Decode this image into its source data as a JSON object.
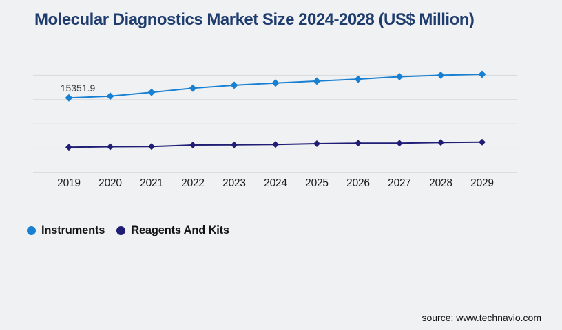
{
  "source": "source: www.technavio.com",
  "colors": {
    "background": "#f0f1f3",
    "title": "#1e3c6e",
    "gridline": "#d7d8da",
    "axis_line": "#c6c7c9",
    "axis_label": "#1a1a1a",
    "data_label": "#3a3a3a",
    "instruments": "#1880d2",
    "reagents_and_kits": "#201d75"
  },
  "legend": {
    "items": [
      {
        "label": "Instruments",
        "color": "#1880d2"
      },
      {
        "label": "Reagents And Kits",
        "color": "#201d75"
      }
    ]
  },
  "chart_data": {
    "type": "line",
    "title": "Molecular Diagnostics Market Size 2024-2028 (US$ Million)",
    "categories": [
      "2019",
      "2020",
      "2021",
      "2022",
      "2023",
      "2024",
      "2025",
      "2026",
      "2027",
      "2028",
      "2029"
    ],
    "series": [
      {
        "name": "Instruments",
        "color": "#1880d2",
        "marker": "diamond",
        "values": [
          15351.9,
          15700,
          16500,
          17350,
          17950,
          18400,
          18800,
          19200,
          19700,
          20000,
          20200
        ]
      },
      {
        "name": "Reagents And Kits",
        "color": "#201d75",
        "marker": "diamond",
        "values": [
          5180,
          5300,
          5320,
          5650,
          5690,
          5750,
          5930,
          6030,
          6030,
          6170,
          6260
        ]
      }
    ],
    "data_labels": [
      {
        "series": "Instruments",
        "category": "2019",
        "text": "15351.9"
      }
    ],
    "xlabel": "",
    "ylabel": "",
    "ylim": [
      0,
      20000
    ],
    "gridline_step": 5000,
    "grid": true,
    "legend_position": "bottom-left"
  }
}
